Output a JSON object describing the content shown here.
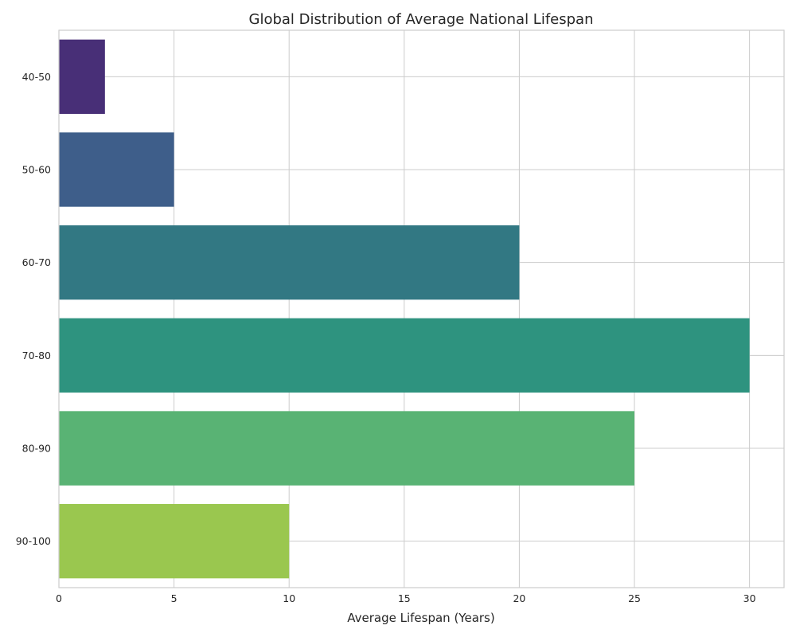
{
  "chart_data": {
    "type": "bar",
    "orientation": "horizontal",
    "title": "Global Distribution of Average National Lifespan",
    "xlabel": "Average Lifespan (Years)",
    "ylabel": "",
    "categories": [
      "40-50",
      "50-60",
      "60-70",
      "70-80",
      "80-90",
      "90-100"
    ],
    "values": [
      2,
      5,
      20,
      30,
      25,
      10
    ],
    "xlim": [
      0,
      31.5
    ],
    "xticks": [
      0,
      5,
      10,
      15,
      20,
      25,
      30
    ],
    "grid": true,
    "legend": "none",
    "colors": [
      "#482f77",
      "#3e5e8a",
      "#327883",
      "#2e937f",
      "#59b374",
      "#9ac74f"
    ],
    "grid_color": "#cccccc",
    "text_color": "#262626"
  }
}
